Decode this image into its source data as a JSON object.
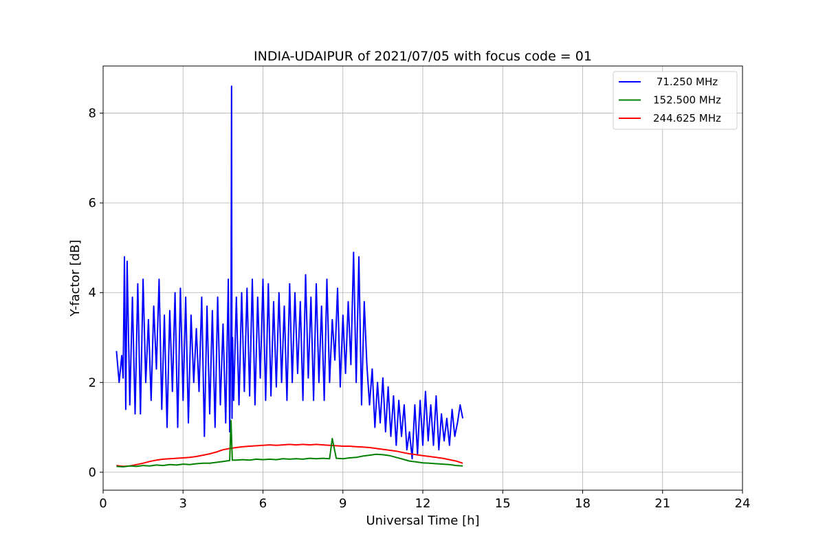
{
  "chart_data": {
    "type": "line",
    "title": "INDIA-UDAIPUR of 2021/07/05 with focus code = 01",
    "xlabel": "Universal Time [h]",
    "ylabel": "Y-factor [dB]",
    "xlim": [
      0,
      24
    ],
    "ylim": [
      -0.4,
      9.05
    ],
    "xticks": [
      0,
      3,
      6,
      9,
      12,
      15,
      18,
      21,
      24
    ],
    "yticks": [
      0,
      2,
      4,
      6,
      8
    ],
    "grid": true,
    "legend_position": "top-right",
    "series": [
      {
        "name": " 71.250 MHz",
        "color": "#0000ff",
        "x": [
          0.5,
          0.6,
          0.7,
          0.75,
          0.8,
          0.85,
          0.9,
          1.0,
          1.1,
          1.2,
          1.3,
          1.4,
          1.5,
          1.6,
          1.7,
          1.8,
          1.9,
          2.0,
          2.1,
          2.2,
          2.3,
          2.4,
          2.5,
          2.6,
          2.7,
          2.8,
          2.9,
          3.0,
          3.1,
          3.2,
          3.3,
          3.4,
          3.5,
          3.6,
          3.7,
          3.8,
          3.9,
          4.0,
          4.1,
          4.2,
          4.3,
          4.4,
          4.5,
          4.6,
          4.7,
          4.75,
          4.8,
          4.82,
          4.84,
          4.86,
          4.9,
          5.0,
          5.1,
          5.2,
          5.3,
          5.4,
          5.5,
          5.6,
          5.7,
          5.8,
          5.9,
          6.0,
          6.1,
          6.2,
          6.3,
          6.4,
          6.5,
          6.6,
          6.7,
          6.8,
          6.9,
          7.0,
          7.1,
          7.2,
          7.3,
          7.4,
          7.5,
          7.6,
          7.7,
          7.8,
          7.9,
          8.0,
          8.1,
          8.2,
          8.3,
          8.4,
          8.5,
          8.6,
          8.7,
          8.8,
          8.9,
          9.0,
          9.1,
          9.2,
          9.3,
          9.4,
          9.5,
          9.6,
          9.7,
          9.8,
          9.9,
          10.0,
          10.1,
          10.2,
          10.3,
          10.4,
          10.5,
          10.6,
          10.7,
          10.8,
          10.9,
          11.0,
          11.1,
          11.2,
          11.3,
          11.4,
          11.5,
          11.6,
          11.7,
          11.8,
          11.9,
          12.0,
          12.1,
          12.2,
          12.3,
          12.4,
          12.5,
          12.6,
          12.7,
          12.8,
          12.9,
          13.0,
          13.1,
          13.2,
          13.3,
          13.4,
          13.5
        ],
        "y": [
          2.7,
          2.0,
          2.6,
          2.1,
          4.8,
          1.4,
          4.7,
          1.5,
          3.9,
          1.3,
          4.2,
          1.3,
          4.3,
          2.0,
          3.4,
          1.6,
          3.7,
          2.3,
          4.3,
          1.4,
          3.5,
          1.0,
          3.6,
          1.8,
          4.0,
          1.0,
          4.1,
          1.6,
          3.9,
          1.1,
          3.5,
          2.0,
          3.2,
          1.8,
          3.9,
          0.8,
          3.7,
          1.3,
          3.6,
          1.0,
          3.9,
          1.5,
          3.3,
          1.1,
          4.3,
          0.9,
          3.5,
          8.6,
          1.2,
          3.0,
          1.6,
          3.9,
          1.5,
          4.0,
          1.8,
          4.1,
          1.7,
          4.3,
          1.5,
          3.9,
          2.1,
          4.3,
          1.6,
          4.2,
          1.7,
          3.8,
          1.9,
          4.0,
          2.0,
          3.7,
          1.6,
          4.2,
          2.0,
          4.0,
          2.2,
          3.8,
          1.6,
          4.4,
          2.1,
          3.9,
          1.6,
          4.2,
          2.0,
          3.7,
          1.6,
          4.3,
          2.0,
          3.4,
          2.5,
          4.1,
          1.9,
          3.5,
          2.2,
          3.8,
          2.4,
          4.9,
          2.0,
          4.8,
          1.5,
          3.8,
          2.4,
          1.5,
          2.3,
          1.0,
          2.0,
          1.1,
          2.1,
          0.9,
          1.9,
          0.8,
          1.7,
          0.6,
          1.6,
          0.8,
          1.5,
          0.5,
          0.9,
          0.3,
          1.5,
          0.4,
          1.6,
          0.6,
          1.8,
          0.7,
          1.5,
          0.6,
          1.7,
          0.5,
          1.3,
          0.7,
          1.2,
          0.6,
          1.4,
          0.8,
          1.1,
          1.5,
          1.2
        ]
      },
      {
        "name": "152.500 MHz",
        "color": "#008000",
        "x": [
          0.5,
          0.75,
          1.0,
          1.25,
          1.5,
          1.75,
          2.0,
          2.25,
          2.5,
          2.75,
          3.0,
          3.25,
          3.5,
          3.75,
          4.0,
          4.25,
          4.5,
          4.75,
          4.8,
          4.85,
          5.0,
          5.25,
          5.5,
          5.75,
          6.0,
          6.25,
          6.5,
          6.75,
          7.0,
          7.25,
          7.5,
          7.75,
          8.0,
          8.25,
          8.5,
          8.6,
          8.75,
          9.0,
          9.25,
          9.5,
          9.75,
          10.0,
          10.25,
          10.5,
          10.75,
          11.0,
          11.25,
          11.5,
          11.75,
          12.0,
          12.25,
          12.5,
          12.75,
          13.0,
          13.25,
          13.5
        ],
        "y": [
          0.13,
          0.12,
          0.14,
          0.13,
          0.15,
          0.14,
          0.16,
          0.15,
          0.17,
          0.16,
          0.18,
          0.17,
          0.19,
          0.2,
          0.2,
          0.22,
          0.24,
          0.26,
          1.15,
          0.27,
          0.27,
          0.28,
          0.27,
          0.29,
          0.28,
          0.29,
          0.28,
          0.3,
          0.29,
          0.3,
          0.29,
          0.31,
          0.3,
          0.31,
          0.3,
          0.75,
          0.31,
          0.3,
          0.32,
          0.33,
          0.36,
          0.38,
          0.4,
          0.39,
          0.37,
          0.33,
          0.29,
          0.25,
          0.23,
          0.21,
          0.2,
          0.19,
          0.18,
          0.17,
          0.15,
          0.14
        ]
      },
      {
        "name": "244.625 MHz",
        "color": "#ff0000",
        "x": [
          0.5,
          0.75,
          1.0,
          1.25,
          1.5,
          1.75,
          2.0,
          2.25,
          2.5,
          2.75,
          3.0,
          3.25,
          3.5,
          3.75,
          4.0,
          4.25,
          4.5,
          4.75,
          5.0,
          5.25,
          5.5,
          5.75,
          6.0,
          6.25,
          6.5,
          6.75,
          7.0,
          7.25,
          7.5,
          7.75,
          8.0,
          8.25,
          8.5,
          8.75,
          9.0,
          9.25,
          9.5,
          9.75,
          10.0,
          10.25,
          10.5,
          10.75,
          11.0,
          11.25,
          11.5,
          11.75,
          12.0,
          12.25,
          12.5,
          12.75,
          13.0,
          13.25,
          13.5
        ],
        "y": [
          0.15,
          0.13,
          0.14,
          0.17,
          0.2,
          0.24,
          0.27,
          0.29,
          0.3,
          0.31,
          0.32,
          0.33,
          0.35,
          0.38,
          0.41,
          0.45,
          0.5,
          0.53,
          0.55,
          0.57,
          0.58,
          0.59,
          0.6,
          0.61,
          0.6,
          0.61,
          0.62,
          0.61,
          0.62,
          0.61,
          0.62,
          0.61,
          0.6,
          0.59,
          0.58,
          0.58,
          0.57,
          0.56,
          0.55,
          0.53,
          0.51,
          0.49,
          0.47,
          0.44,
          0.41,
          0.39,
          0.37,
          0.35,
          0.33,
          0.31,
          0.28,
          0.25,
          0.2
        ]
      }
    ]
  }
}
